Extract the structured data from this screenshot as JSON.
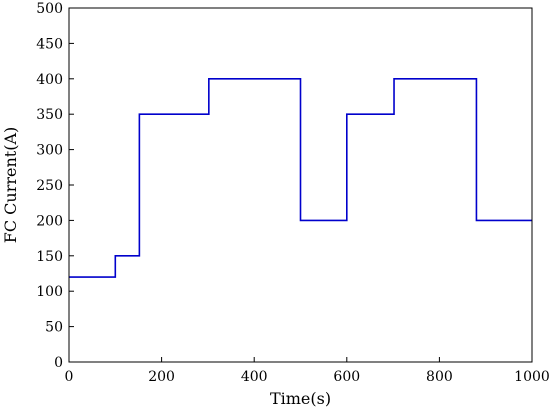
{
  "chart_data": {
    "type": "line",
    "title": "",
    "xlabel": "Time(s)",
    "ylabel": "FC Current(A)",
    "xlim": [
      0,
      1000
    ],
    "ylim": [
      0,
      500
    ],
    "xticks": [
      0,
      200,
      400,
      600,
      800,
      1000
    ],
    "yticks": [
      0,
      50,
      100,
      150,
      200,
      250,
      300,
      350,
      400,
      450,
      500
    ],
    "grid": false,
    "legend": "none",
    "series": [
      {
        "color": "#0000CC",
        "step": true,
        "x": [
          0,
          100,
          100,
          152,
          152,
          302,
          302,
          500,
          500,
          600,
          600,
          702,
          702,
          880,
          880,
          1000
        ],
        "y": [
          120,
          120,
          150,
          150,
          350,
          350,
          400,
          400,
          200,
          200,
          350,
          350,
          400,
          400,
          200,
          200
        ]
      }
    ]
  }
}
